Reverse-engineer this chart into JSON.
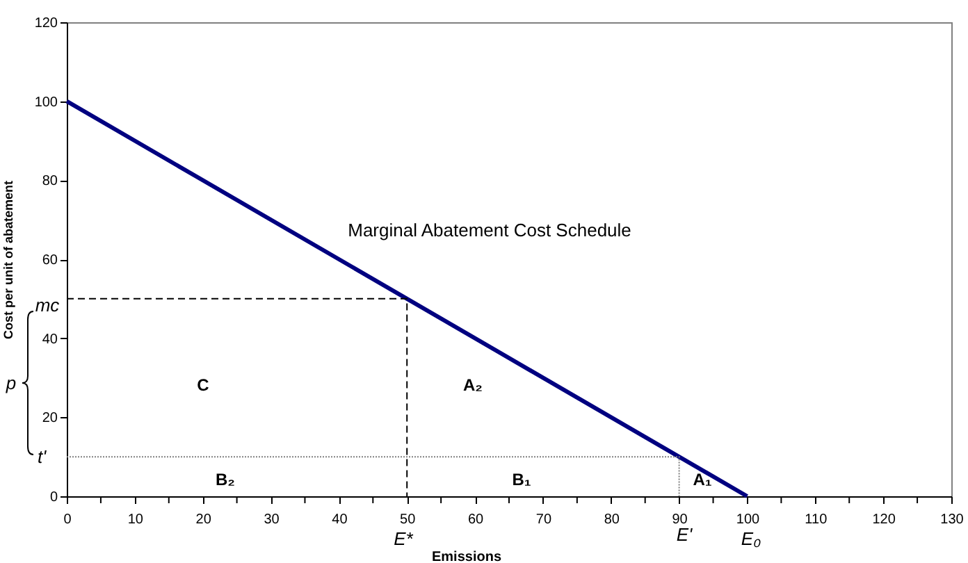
{
  "chart_data": {
    "type": "line",
    "xlabel": "Emissions",
    "ylabel": "Cost per unit of abatement",
    "xlim": [
      0,
      130
    ],
    "ylim": [
      0,
      120
    ],
    "xticks": [
      0,
      {
        "value": 5,
        "label": null
      },
      10,
      {
        "value": 15,
        "label": null
      },
      20,
      {
        "value": 25,
        "label": null
      },
      30,
      {
        "value": 35,
        "label": null
      },
      40,
      {
        "value": 45,
        "label": null
      },
      50,
      {
        "value": 55,
        "label": null
      },
      60,
      {
        "value": 65,
        "label": null
      },
      70,
      {
        "value": 75,
        "label": null
      },
      80,
      {
        "value": 85,
        "label": null
      },
      90,
      {
        "value": 95,
        "label": null
      },
      100,
      {
        "value": 105,
        "label": null
      },
      110,
      {
        "value": 115,
        "label": null
      },
      120,
      {
        "value": 125,
        "label": null
      },
      130
    ],
    "yticks": [
      0,
      20,
      40,
      60,
      80,
      100,
      120
    ],
    "grid": false,
    "marker": "none",
    "series": [
      {
        "color": "#000080",
        "line_style": "solid",
        "x": [
          0,
          100
        ],
        "values": [
          100,
          0
        ]
      },
      {
        "color": "#000000",
        "line_style": "dashed",
        "x": [
          0,
          50,
          50
        ],
        "values": [
          50,
          50,
          0
        ]
      },
      {
        "color": "#808080",
        "line_style": "dotted",
        "x": [
          0,
          90,
          90
        ],
        "values": [
          10,
          10,
          0
        ]
      }
    ],
    "annotations": [
      "Marginal Abatement Cost Schedule",
      "C",
      "A₂",
      "B₂",
      "B₁",
      "A₁",
      "mc",
      "t'",
      "p",
      "E*",
      "E'",
      "E₀"
    ]
  }
}
